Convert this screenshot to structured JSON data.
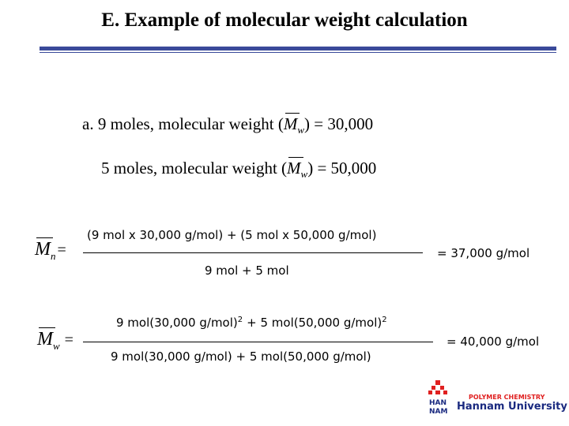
{
  "header": {
    "title": "E. Example of molecular weight calculation"
  },
  "items": [
    {
      "prefix": "a. 9 moles, molecular weight (",
      "symbol": "M",
      "subscript": "w",
      "suffix": ") = 30,000"
    },
    {
      "prefix": "5 moles, molecular weight (",
      "symbol": "M",
      "subscript": "w",
      "suffix": ") = 50,000"
    }
  ],
  "formulas": [
    {
      "symbol": "M",
      "subscript": "n",
      "equals": "=",
      "numerator": "(9 mol x 30,000 g/mol) + (5 mol x 50,000 g/mol)",
      "denominator": "9 mol + 5 mol",
      "result": "= 37,000 g/mol"
    },
    {
      "symbol": "M",
      "subscript": "w",
      "equals": "=",
      "numerator": [
        "9 mol(30,000 g/mol)",
        "2",
        "+ 5 mol(50,000 g/mol)",
        "2"
      ],
      "denominator": "9 mol(30,000 g/mol) + 5 mol(50,000 g/mol)",
      "result": "= 40,000 g/mol"
    }
  ],
  "logo": {
    "mark_top": "HAN",
    "mark_bottom": "NAM",
    "subtitle": "POLYMER CHEMISTRY",
    "name": "Hannam University"
  }
}
